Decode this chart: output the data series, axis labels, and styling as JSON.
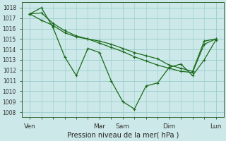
{
  "bg_color": "#cce8e8",
  "plot_bg_color": "#cce8e8",
  "grid_color": "#99cccc",
  "line_color": "#1a6b1a",
  "marker_color": "#1a6b1a",
  "xlabel": "Pression niveau de la mer( hPa )",
  "ylim": [
    1007.5,
    1018.5
  ],
  "yticks": [
    1008,
    1009,
    1010,
    1011,
    1012,
    1013,
    1014,
    1015,
    1016,
    1017,
    1018
  ],
  "xtick_labels": [
    "Ven",
    "Mar",
    "Sam",
    "Dim",
    "Lun"
  ],
  "xtick_positions": [
    0,
    36,
    48,
    72,
    96
  ],
  "xlim": [
    -4,
    100
  ],
  "series": [
    {
      "x": [
        0,
        6,
        12,
        18,
        24,
        30,
        36,
        42,
        48,
        54,
        60,
        66,
        72,
        78,
        84,
        90,
        96
      ],
      "y": [
        1017.4,
        1018.0,
        1016.1,
        1013.3,
        1011.5,
        1014.1,
        1013.7,
        1011.0,
        1009.0,
        1008.3,
        1010.5,
        1010.8,
        1012.3,
        1012.6,
        1011.5,
        1013.0,
        1014.9
      ]
    },
    {
      "x": [
        0,
        6,
        12,
        18,
        24,
        30,
        36,
        42,
        48,
        54,
        60,
        66,
        72,
        78,
        84,
        90,
        96
      ],
      "y": [
        1017.4,
        1016.8,
        1016.3,
        1015.6,
        1015.2,
        1015.0,
        1014.8,
        1014.5,
        1014.1,
        1013.7,
        1013.4,
        1013.1,
        1012.5,
        1012.2,
        1011.9,
        1014.8,
        1015.0
      ]
    },
    {
      "x": [
        0,
        6,
        12,
        18,
        24,
        30,
        36,
        42,
        48,
        54,
        60,
        66,
        72,
        78,
        84,
        90,
        96
      ],
      "y": [
        1017.4,
        1017.5,
        1016.5,
        1015.8,
        1015.3,
        1015.0,
        1014.6,
        1014.2,
        1013.8,
        1013.3,
        1012.9,
        1012.5,
        1012.2,
        1011.9,
        1011.8,
        1014.5,
        1015.0
      ]
    }
  ]
}
